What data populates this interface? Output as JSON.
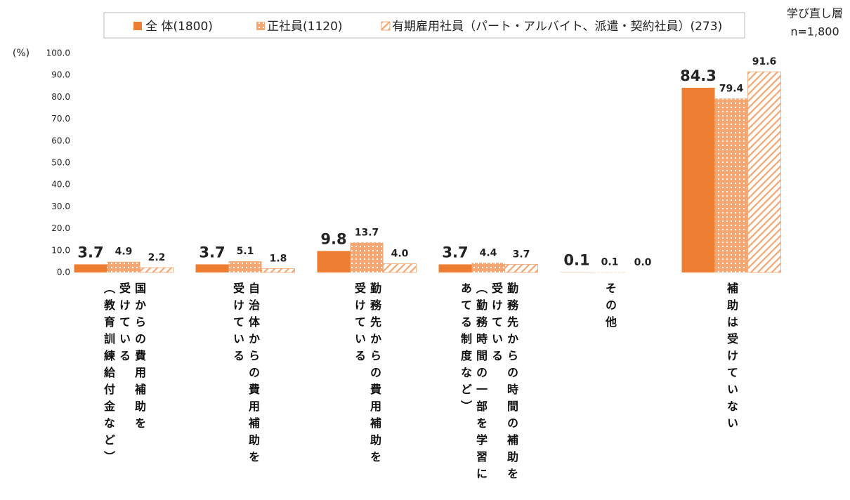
{
  "chart_data": {
    "type": "bar",
    "note": "学び直し層",
    "sample": "n=1,800",
    "ylabel": "(%)",
    "categories": [
      "国からの費用補助を\n受けている\n（教育訓練給付金など）",
      "自治体からの費用補助を\n受けている",
      "勤務先からの費用補助を\n受けている",
      "勤務先からの時間の補助を\n受けている\n（勤務時間の一部を学習に\nあてる制度など）",
      "その他",
      "補助は受けていない"
    ],
    "series": [
      {
        "name": "全 体(1800)",
        "color": "#ed7d31",
        "pattern": "solid",
        "values": [
          3.7,
          3.7,
          9.8,
          3.7,
          0.1,
          84.3
        ],
        "value_labels": [
          "3.7",
          "3.7",
          "9.8",
          "3.7",
          "0.1",
          "84.3"
        ]
      },
      {
        "name": "正社員(1120)",
        "color": "#f4a673",
        "pattern": "dots",
        "values": [
          4.9,
          5.1,
          13.7,
          4.4,
          0.1,
          79.4
        ],
        "value_labels": [
          "4.9",
          "5.1",
          "13.7",
          "4.4",
          "0.1",
          "79.4"
        ]
      },
      {
        "name": "有期雇用社員（パート・アルバイト、派遣・契約社員）(273)",
        "color": "#f4a673",
        "pattern": "hatch",
        "values": [
          2.2,
          1.8,
          4.0,
          3.7,
          0.0,
          91.6
        ],
        "value_labels": [
          "2.2",
          "1.8",
          "4.0",
          "3.7",
          "0.0",
          "91.6"
        ]
      }
    ],
    "ylim": [
      0,
      100
    ],
    "yticks": [
      {
        "value": 0,
        "label": "0.0"
      },
      {
        "value": 10,
        "label": "10.0"
      },
      {
        "value": 20,
        "label": "20.0"
      },
      {
        "value": 30,
        "label": "30.0"
      },
      {
        "value": 40,
        "label": "40.0"
      },
      {
        "value": 50,
        "label": "50.0"
      },
      {
        "value": 60,
        "label": "60.0"
      },
      {
        "value": 70,
        "label": "70.0"
      },
      {
        "value": 80,
        "label": "80.0"
      },
      {
        "value": 90,
        "label": "90.0"
      },
      {
        "value": 100,
        "label": "100.0"
      }
    ]
  }
}
